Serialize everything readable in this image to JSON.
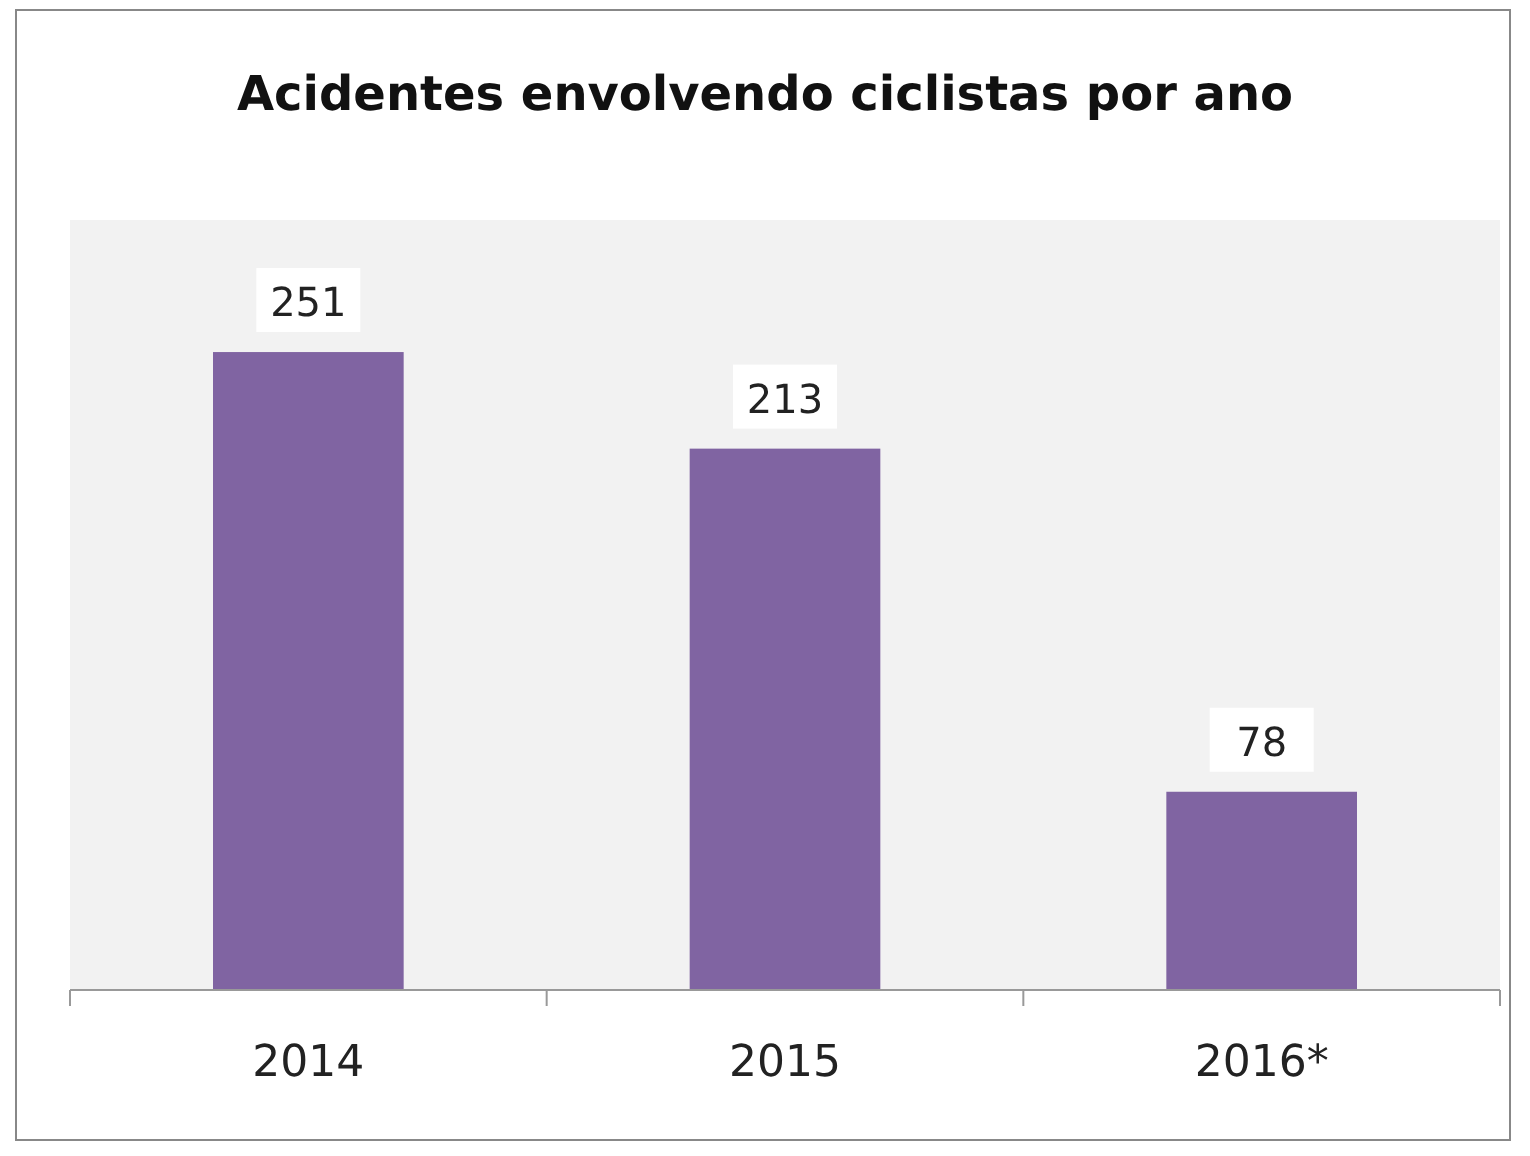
{
  "chart_data": {
    "type": "bar",
    "title": "Acidentes envolvendo ciclistas por ano",
    "categories": [
      "2014",
      "2015",
      "2016*"
    ],
    "values": [
      251,
      213,
      78
    ],
    "color": "#8064a2",
    "data_labels": true
  }
}
